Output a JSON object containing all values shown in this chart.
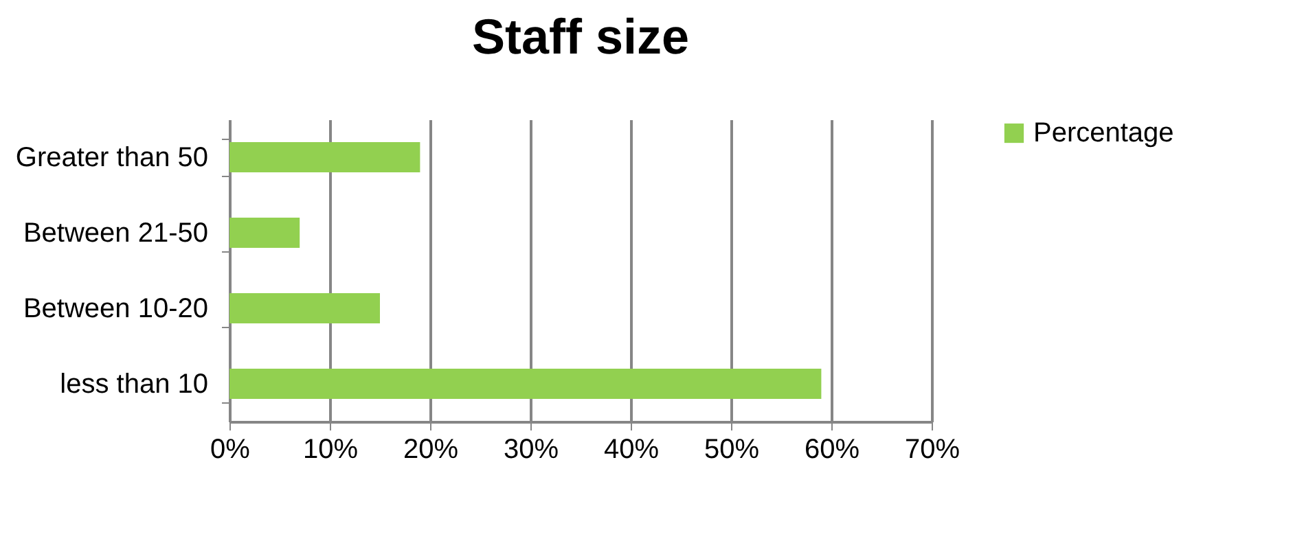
{
  "chart_data": {
    "type": "bar",
    "orientation": "horizontal",
    "title": "Staff size",
    "categories": [
      "Greater than 50",
      "Between 21-50",
      "Between 10-20",
      "less than 10"
    ],
    "series": [
      {
        "name": "Percentage",
        "color": "#92d050",
        "values": [
          19,
          7,
          15,
          59
        ]
      }
    ],
    "xlim": [
      0,
      70
    ],
    "xticks": [
      {
        "value": 0,
        "label": "0%"
      },
      {
        "value": 10,
        "label": "10%"
      },
      {
        "value": 20,
        "label": "20%"
      },
      {
        "value": 30,
        "label": "30%"
      },
      {
        "value": 40,
        "label": "40%"
      },
      {
        "value": 50,
        "label": "50%"
      },
      {
        "value": 60,
        "label": "60%"
      },
      {
        "value": 70,
        "label": "70%"
      }
    ],
    "grid": "x",
    "legend": "right"
  }
}
